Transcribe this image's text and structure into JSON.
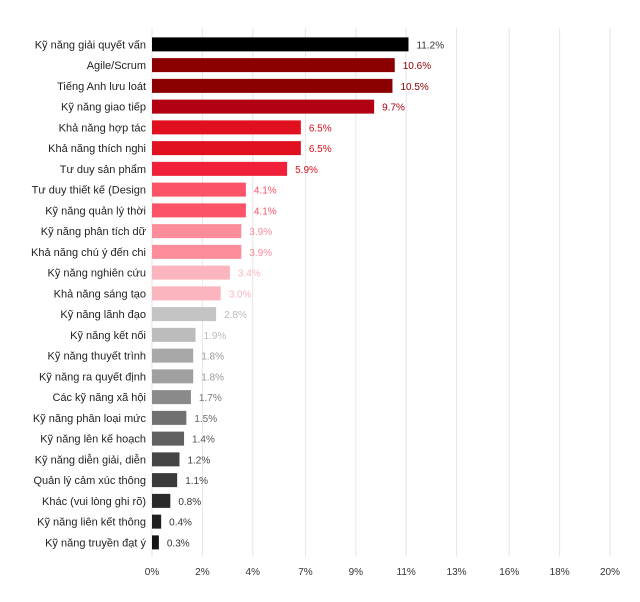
{
  "chart_data": {
    "type": "bar",
    "orientation": "horizontal",
    "categories": [
      "Kỹ năng giải quyết vấn",
      "Agile/Scrum",
      "Tiếng Anh lưu loát",
      "Kỹ năng giao tiếp",
      "Khả năng hợp tác",
      "Khả năng thích nghi",
      "Tư duy sản phẩm",
      "Tư duy thiết kế (Design",
      "Kỹ năng quản lý thời",
      "Kỹ năng phân tích dữ",
      "Khả năng chú ý đến chi",
      "Kỹ năng nghiên cứu",
      "Khả năng sáng tạo",
      "Kỹ năng lãnh đạo",
      "Kỹ năng kết nối",
      "Kỹ năng thuyết trình",
      "Kỹ năng ra quyết định",
      "Các kỹ năng xã hội",
      "Kỹ năng phân loại mức",
      "Kỹ năng lên kế hoạch",
      "Kỹ năng diễn giải, diễn",
      "Quản lý cảm xúc thông",
      "Khác (vui lòng ghi rõ)",
      "Kỹ năng liên kết thông",
      "Kỹ năng truyền đạt ý"
    ],
    "values": [
      11.2,
      10.6,
      10.5,
      9.7,
      6.5,
      6.5,
      5.9,
      4.1,
      4.1,
      3.9,
      3.9,
      3.4,
      3.0,
      2.8,
      1.9,
      1.8,
      1.8,
      1.7,
      1.5,
      1.4,
      1.2,
      1.1,
      0.8,
      0.4,
      0.3
    ],
    "value_labels": [
      "11.2%",
      "10.6%",
      "10.5%",
      "9.7%",
      "6.5%",
      "6.5%",
      "5.9%",
      "4.1%",
      "4.1%",
      "3.9%",
      "3.9%",
      "3.4%",
      "3.0%",
      "2.8%",
      "1.9%",
      "1.8%",
      "1.8%",
      "1.7%",
      "1.5%",
      "1.4%",
      "1.2%",
      "1.1%",
      "0.8%",
      "0.4%",
      "0.3%"
    ],
    "colors": [
      "#000000",
      "#8b0000",
      "#8b0000",
      "#b00012",
      "#e0101e",
      "#e0101e",
      "#f0203a",
      "#fb5368",
      "#fb5368",
      "#fc8c9a",
      "#fc8c9a",
      "#fbb5bf",
      "#fbb5bf",
      "#c4c4c4",
      "#bcbcbc",
      "#a8a8a8",
      "#a0a0a0",
      "#8a8a8a",
      "#707070",
      "#606060",
      "#454545",
      "#3a3a3a",
      "#2a2a2a",
      "#1e1e1e",
      "#141414"
    ],
    "label_colors": [
      "#333333",
      "#8b0000",
      "#8b0000",
      "#b00012",
      "#e0101e",
      "#e0101e",
      "#e0101e",
      "#fb5368",
      "#fb5368",
      "#fc8c9a",
      "#fc8c9a",
      "#fbb5bf",
      "#fbb5bf",
      "#bbbbbb",
      "#bbbbbb",
      "#999999",
      "#999999",
      "#777777",
      "#666666",
      "#555555",
      "#444444",
      "#444444",
      "#333333",
      "#333333",
      "#333333"
    ],
    "x_ticks": [
      0,
      2.2,
      4.4,
      6.7,
      8.9,
      11.1,
      13.3,
      15.6,
      17.8,
      20
    ],
    "x_tick_labels": [
      "0%",
      "2%",
      "4%",
      "7%",
      "9%",
      "11%",
      "13%",
      "16%",
      "18%",
      "20%"
    ],
    "xlim": [
      0,
      20
    ],
    "title": "",
    "xlabel": "",
    "ylabel": "",
    "grid": true,
    "legend": false
  }
}
